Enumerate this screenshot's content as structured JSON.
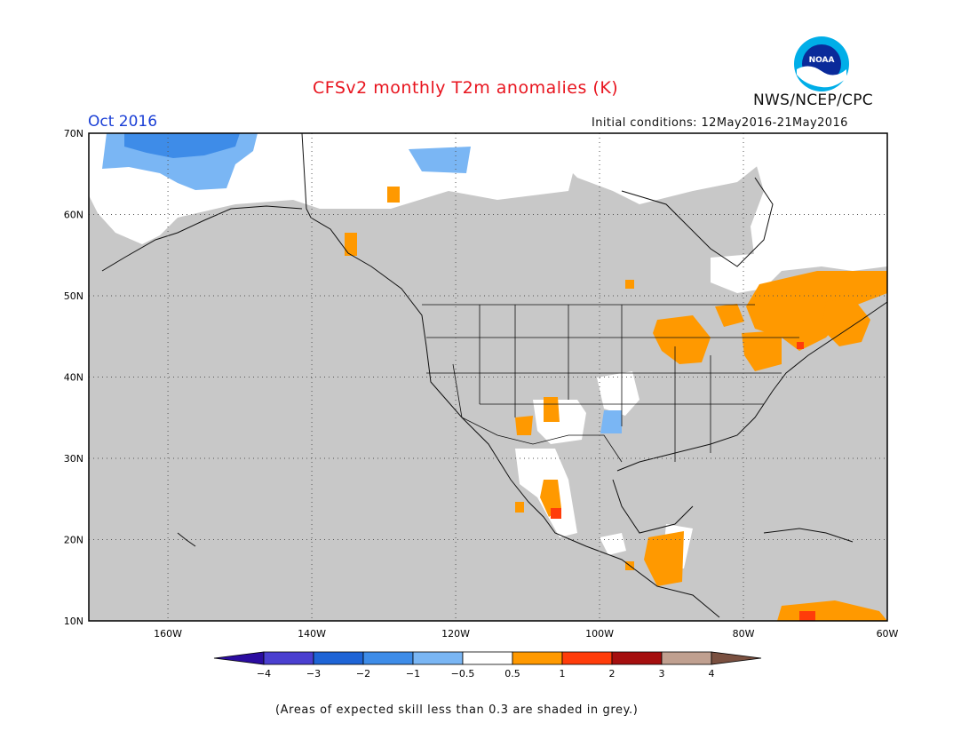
{
  "header": {
    "title": "CFSv2 monthly T2m anomalies (K)",
    "month": "Oct 2016",
    "initial_conditions": "Initial conditions: 12May2016-21May2016",
    "agency": "NWS/NCEP/CPC",
    "logo_text": "NOAA"
  },
  "map": {
    "lat_labels": [
      "70N",
      "60N",
      "50N",
      "40N",
      "30N",
      "20N",
      "10N"
    ],
    "lon_labels": [
      "160W",
      "140W",
      "120W",
      "100W",
      "80W",
      "60W"
    ],
    "lat_range": [
      10,
      70
    ],
    "lon_range": [
      -171,
      -60
    ],
    "background_color": "#c8c8c8",
    "grid": true
  },
  "legend": {
    "ticks": [
      "-4",
      "-3",
      "-2",
      "-1",
      "-0.5",
      "0.5",
      "1",
      "2",
      "3",
      "4"
    ],
    "colors": [
      "#2b0ca0",
      "#4a3fd0",
      "#1e64d6",
      "#3e8ce8",
      "#7ab6f4",
      "#ffffff",
      "#ff9900",
      "#ff3c0a",
      "#a50f0f",
      "#c0a090",
      "#7a5040"
    ]
  },
  "footnote": "(Areas of expected skill less than 0.3 are shaded in grey.)"
}
